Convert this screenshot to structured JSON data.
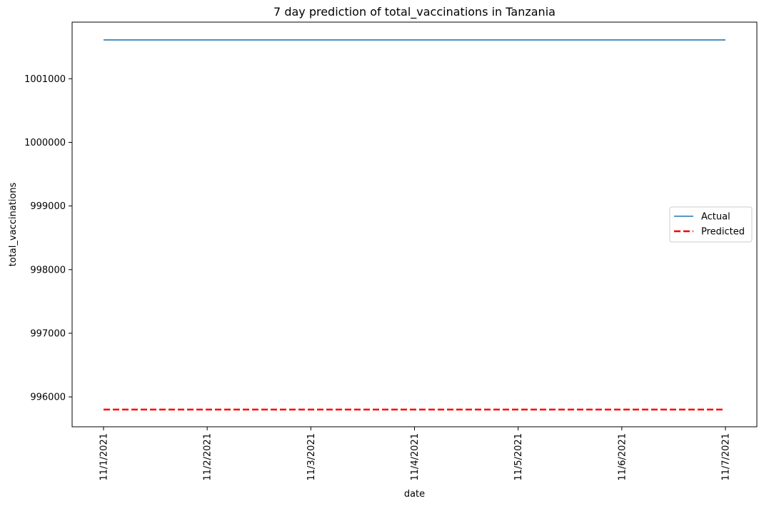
{
  "chart_data": {
    "type": "line",
    "title": "7 day prediction of total_vaccinations in Tanzania",
    "xlabel": "date",
    "ylabel": "total_vaccinations",
    "x": [
      "11/1/2021",
      "11/2/2021",
      "11/3/2021",
      "11/4/2021",
      "11/5/2021",
      "11/6/2021",
      "11/7/2021"
    ],
    "yticks": [
      996000,
      997000,
      998000,
      999000,
      1000000,
      1001000
    ],
    "ylim": [
      995530,
      1001890
    ],
    "series": [
      {
        "name": "Actual",
        "values": [
          1001610,
          1001610,
          1001610,
          1001610,
          1001610,
          1001610,
          1001610
        ],
        "color": "#1f77b4",
        "style": "solid"
      },
      {
        "name": "Predicted",
        "values": [
          995800,
          995800,
          995800,
          995800,
          995800,
          995800,
          995800
        ],
        "color": "#ff0000",
        "style": "dashed"
      }
    ],
    "legend_position": "center-right",
    "grid": false
  }
}
